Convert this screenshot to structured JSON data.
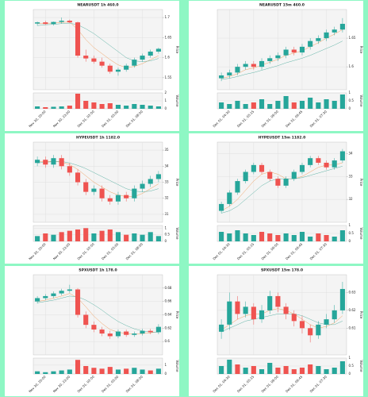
{
  "chart_data": [
    {
      "type": "candlestick",
      "title": "NEARUSDT 1h 460.0",
      "ylabel": "Price",
      "vlabel": "Volume",
      "x": [
        null,
        "Nov 30, 20:00",
        null,
        null,
        "Nov 30, 23:00",
        null,
        null,
        "Dec 01, 02:00",
        null,
        null,
        "Dec 01, 05:00",
        null,
        null,
        "Dec 01, 08:00",
        null,
        null
      ],
      "open": [
        1.685,
        1.688,
        1.684,
        1.689,
        1.692,
        1.688,
        1.605,
        1.598,
        1.59,
        1.58,
        1.565,
        1.57,
        1.58,
        1.595,
        1.605,
        1.615
      ],
      "high": [
        1.69,
        1.692,
        1.69,
        1.7,
        1.695,
        1.69,
        1.62,
        1.605,
        1.6,
        1.585,
        1.575,
        1.585,
        1.6,
        1.61,
        1.62,
        1.625
      ],
      "low": [
        1.68,
        1.682,
        1.68,
        1.685,
        1.686,
        1.6,
        1.59,
        1.585,
        1.575,
        1.56,
        1.555,
        1.565,
        1.575,
        1.59,
        1.6,
        1.61
      ],
      "close": [
        1.688,
        1.684,
        1.689,
        1.692,
        1.688,
        1.605,
        1.598,
        1.59,
        1.58,
        1.565,
        1.57,
        1.58,
        1.595,
        1.605,
        1.615,
        1.622
      ],
      "volume": [
        0.3,
        0.2,
        0.25,
        0.3,
        0.4,
        1.9,
        1.0,
        0.8,
        0.6,
        0.7,
        0.5,
        0.4,
        0.6,
        0.5,
        0.4,
        0.3
      ],
      "ma": [
        {
          "color": "#f0a060",
          "values": [
            1.685,
            1.686,
            1.686,
            1.688,
            1.689,
            1.67,
            1.645,
            1.625,
            1.61,
            1.595,
            1.582,
            1.575,
            1.578,
            1.585,
            1.595,
            1.605
          ]
        },
        {
          "color": "#5fb3a6",
          "values": [
            1.68,
            1.682,
            1.683,
            1.685,
            1.686,
            1.682,
            1.672,
            1.66,
            1.645,
            1.63,
            1.615,
            1.6,
            1.592,
            1.59,
            1.592,
            1.598
          ]
        }
      ],
      "ylim": [
        1.52,
        1.72
      ],
      "yticks": [
        1.55,
        1.6,
        1.65,
        1.7
      ],
      "vlim": [
        0,
        2
      ],
      "vticks": [
        0,
        1,
        2
      ],
      "up_color": "#26a69a",
      "down_color": "#ef5350",
      "grid": true
    },
    {
      "type": "candlestick",
      "title": "NEARUSDT 15m 460.0",
      "ylabel": "Price",
      "vlabel": "Volume",
      "x": [
        null,
        "Dec 01, 04:30",
        null,
        null,
        "Dec 01, 05:15",
        null,
        null,
        "Dec 01, 06:00",
        null,
        null,
        "Dec 01, 06:45",
        null,
        null,
        "Dec 01, 07:30",
        null,
        null
      ],
      "open": [
        1.58,
        1.585,
        1.59,
        1.6,
        1.605,
        1.6,
        1.61,
        1.615,
        1.62,
        1.63,
        1.625,
        1.635,
        1.645,
        1.65,
        1.66,
        1.665
      ],
      "high": [
        1.59,
        1.595,
        1.605,
        1.61,
        1.61,
        1.615,
        1.62,
        1.625,
        1.635,
        1.635,
        1.64,
        1.65,
        1.655,
        1.665,
        1.67,
        1.685
      ],
      "low": [
        1.575,
        1.58,
        1.585,
        1.595,
        1.595,
        1.595,
        1.605,
        1.61,
        1.615,
        1.62,
        1.62,
        1.63,
        1.64,
        1.645,
        1.655,
        1.66
      ],
      "close": [
        1.585,
        1.59,
        1.6,
        1.605,
        1.6,
        1.61,
        1.615,
        1.62,
        1.63,
        1.625,
        1.635,
        1.645,
        1.65,
        1.66,
        1.665,
        1.675
      ],
      "volume": [
        0.4,
        0.3,
        0.5,
        0.3,
        0.4,
        0.6,
        0.3,
        0.5,
        0.8,
        0.4,
        0.5,
        0.7,
        0.4,
        0.6,
        0.5,
        0.9
      ],
      "ma": [
        {
          "color": "#f0a060",
          "values": [
            1.58,
            1.583,
            1.588,
            1.595,
            1.598,
            1.603,
            1.608,
            1.613,
            1.62,
            1.624,
            1.628,
            1.635,
            1.642,
            1.65,
            1.657,
            1.665
          ]
        },
        {
          "color": "#5fb3a6",
          "values": [
            1.578,
            1.58,
            1.583,
            1.587,
            1.59,
            1.594,
            1.598,
            1.602,
            1.607,
            1.611,
            1.615,
            1.62,
            1.626,
            1.632,
            1.638,
            1.645
          ]
        }
      ],
      "ylim": [
        1.56,
        1.7
      ],
      "yticks": [
        1.6,
        1.65
      ],
      "vlim": [
        0,
        1
      ],
      "vticks": [
        0,
        0.5,
        1
      ],
      "up_color": "#26a69a",
      "down_color": "#ef5350",
      "grid": true
    },
    {
      "type": "candlestick",
      "title": "HYPEUSDT 1h 1182.0",
      "ylabel": "Price",
      "vlabel": "Volume",
      "x": [
        null,
        "Nov 30, 20:00",
        null,
        null,
        "Nov 30, 23:00",
        null,
        null,
        "Dec 01, 02:00",
        null,
        null,
        "Dec 01, 05:00",
        null,
        null,
        "Dec 01, 08:00",
        null,
        null
      ],
      "open": [
        34.2,
        34.4,
        34.1,
        34.5,
        34.0,
        33.6,
        33.0,
        32.4,
        32.6,
        32.0,
        31.8,
        32.2,
        32.0,
        32.6,
        32.9,
        33.2
      ],
      "high": [
        34.6,
        34.6,
        34.7,
        34.7,
        34.2,
        33.8,
        33.2,
        32.8,
        32.8,
        32.2,
        32.4,
        32.4,
        32.8,
        33.1,
        33.4,
        33.7
      ],
      "low": [
        34.0,
        33.9,
        33.9,
        33.8,
        33.4,
        32.8,
        32.2,
        32.2,
        31.8,
        31.6,
        31.6,
        31.8,
        31.8,
        32.4,
        32.7,
        33.0
      ],
      "close": [
        34.4,
        34.1,
        34.5,
        34.0,
        33.6,
        33.0,
        32.4,
        32.6,
        32.0,
        31.8,
        32.2,
        32.0,
        32.6,
        32.9,
        33.2,
        33.5
      ],
      "volume": [
        0.4,
        0.6,
        0.5,
        0.7,
        0.8,
        0.9,
        1.0,
        0.6,
        0.8,
        0.9,
        0.7,
        0.5,
        0.6,
        0.5,
        0.7,
        0.4
      ],
      "ma": [
        {
          "color": "#f0a060",
          "values": [
            34.3,
            34.3,
            34.3,
            34.25,
            34.1,
            33.8,
            33.4,
            33.0,
            32.7,
            32.4,
            32.2,
            32.1,
            32.1,
            32.3,
            32.6,
            32.9
          ]
        },
        {
          "color": "#5fb3a6",
          "values": [
            34.2,
            34.25,
            34.28,
            34.3,
            34.2,
            34.05,
            33.85,
            33.6,
            33.35,
            33.1,
            32.85,
            32.6,
            32.45,
            32.4,
            32.45,
            32.6
          ]
        }
      ],
      "ylim": [
        30.5,
        35.5
      ],
      "yticks": [
        31,
        32,
        33,
        34,
        35
      ],
      "vlim": [
        0,
        1.2
      ],
      "vticks": [
        0,
        0.5,
        1
      ],
      "up_color": "#26a69a",
      "down_color": "#ef5350",
      "grid": true
    },
    {
      "type": "candlestick",
      "title": "HYPEUSDT 15m 1182.0",
      "ylabel": "Price",
      "vlabel": "Volume",
      "x": [
        null,
        "Dec 01, 04:30",
        null,
        null,
        "Dec 01, 05:15",
        null,
        null,
        "Dec 01, 06:00",
        null,
        null,
        "Dec 01, 06:45",
        null,
        null,
        "Dec 01, 07:30",
        null,
        null
      ],
      "open": [
        31.5,
        31.8,
        32.3,
        32.8,
        33.2,
        33.5,
        33.2,
        32.9,
        32.6,
        32.9,
        33.2,
        33.5,
        33.8,
        33.6,
        33.4,
        33.7
      ],
      "high": [
        31.9,
        32.4,
        32.9,
        33.3,
        33.6,
        33.6,
        33.3,
        33.0,
        33.0,
        33.3,
        33.6,
        33.9,
        33.9,
        33.7,
        33.8,
        34.2
      ],
      "low": [
        31.4,
        31.7,
        32.2,
        32.7,
        33.1,
        33.1,
        32.8,
        32.5,
        32.5,
        32.8,
        33.1,
        33.4,
        33.5,
        33.3,
        33.3,
        33.6
      ],
      "close": [
        31.8,
        32.3,
        32.8,
        33.2,
        33.5,
        33.2,
        32.9,
        32.6,
        32.9,
        33.2,
        33.5,
        33.8,
        33.6,
        33.4,
        33.7,
        34.1
      ],
      "volume": [
        0.6,
        0.5,
        0.7,
        0.5,
        0.4,
        0.6,
        0.5,
        0.4,
        0.5,
        0.4,
        0.6,
        0.3,
        0.5,
        0.4,
        0.3,
        0.7
      ],
      "ma": [
        {
          "color": "#f0a060",
          "values": [
            31.5,
            31.7,
            32.0,
            32.4,
            32.8,
            33.1,
            33.2,
            33.1,
            32.9,
            32.9,
            33.0,
            33.2,
            33.4,
            33.5,
            33.5,
            33.6
          ]
        },
        {
          "color": "#5fb3a6",
          "values": [
            31.4,
            31.5,
            31.7,
            32.0,
            32.3,
            32.6,
            32.8,
            32.9,
            32.9,
            32.9,
            32.95,
            33.05,
            33.15,
            33.25,
            33.35,
            33.45
          ]
        }
      ],
      "ylim": [
        31,
        34.5
      ],
      "yticks": [
        32,
        33,
        34
      ],
      "vlim": [
        0,
        1
      ],
      "vticks": [
        0,
        0.5,
        1
      ],
      "up_color": "#26a69a",
      "down_color": "#ef5350",
      "grid": true
    },
    {
      "type": "candlestick",
      "title": "SPXUSDT 1h 178.0",
      "ylabel": "Price",
      "vlabel": "Volume",
      "x": [
        null,
        "Nov 30, 20:00",
        null,
        null,
        "Nov 30, 23:00",
        null,
        null,
        "Dec 01, 02:00",
        null,
        null,
        "Dec 01, 05:00",
        null,
        null,
        "Dec 01, 08:00",
        null,
        null
      ],
      "open": [
        0.66,
        0.665,
        0.668,
        0.672,
        0.676,
        0.678,
        0.64,
        0.625,
        0.618,
        0.612,
        0.608,
        0.615,
        0.61,
        0.612,
        0.616,
        0.614
      ],
      "high": [
        0.668,
        0.671,
        0.675,
        0.679,
        0.685,
        0.68,
        0.645,
        0.63,
        0.622,
        0.616,
        0.618,
        0.618,
        0.615,
        0.619,
        0.619,
        0.626
      ],
      "low": [
        0.657,
        0.662,
        0.665,
        0.669,
        0.673,
        0.636,
        0.62,
        0.614,
        0.608,
        0.604,
        0.605,
        0.607,
        0.607,
        0.609,
        0.611,
        0.611
      ],
      "close": [
        0.665,
        0.668,
        0.672,
        0.676,
        0.678,
        0.64,
        0.625,
        0.618,
        0.612,
        0.608,
        0.615,
        0.61,
        0.612,
        0.616,
        0.614,
        0.622
      ],
      "volume": [
        0.3,
        0.2,
        0.3,
        0.4,
        0.5,
        1.6,
        0.9,
        0.7,
        0.6,
        0.8,
        0.5,
        0.6,
        0.7,
        0.5,
        0.4,
        0.6
      ],
      "ma": [
        {
          "color": "#f0a060",
          "values": [
            0.66,
            0.662,
            0.665,
            0.668,
            0.672,
            0.665,
            0.652,
            0.638,
            0.627,
            0.618,
            0.614,
            0.612,
            0.611,
            0.612,
            0.613,
            0.615
          ]
        },
        {
          "color": "#5fb3a6",
          "values": [
            0.658,
            0.66,
            0.662,
            0.665,
            0.668,
            0.667,
            0.662,
            0.655,
            0.647,
            0.638,
            0.63,
            0.624,
            0.619,
            0.616,
            0.614,
            0.614
          ]
        }
      ],
      "ylim": [
        0.58,
        0.7
      ],
      "yticks": [
        0.6,
        0.62,
        0.64,
        0.66,
        0.68
      ],
      "vlim": [
        0,
        1.8
      ],
      "vticks": [
        0,
        1
      ],
      "up_color": "#26a69a",
      "down_color": "#ef5350",
      "grid": true
    },
    {
      "type": "candlestick",
      "title": "SPXUSDT 15m 178.0",
      "ylabel": "Price",
      "vlabel": "Volume",
      "x": [
        null,
        "Dec 01, 04:30",
        null,
        null,
        "Dec 01, 05:15",
        null,
        null,
        "Dec 01, 06:00",
        null,
        null,
        "Dec 01, 06:45",
        null,
        null,
        "Dec 01, 07:30",
        null,
        null
      ],
      "open": [
        0.608,
        0.612,
        0.625,
        0.618,
        0.622,
        0.615,
        0.62,
        0.628,
        0.622,
        0.618,
        0.614,
        0.61,
        0.606,
        0.612,
        0.615,
        0.62
      ],
      "high": [
        0.615,
        0.63,
        0.628,
        0.625,
        0.624,
        0.623,
        0.631,
        0.63,
        0.624,
        0.62,
        0.617,
        0.612,
        0.614,
        0.618,
        0.623,
        0.636
      ],
      "low": [
        0.604,
        0.609,
        0.615,
        0.616,
        0.612,
        0.613,
        0.618,
        0.619,
        0.615,
        0.611,
        0.607,
        0.602,
        0.604,
        0.61,
        0.613,
        0.618
      ],
      "close": [
        0.612,
        0.625,
        0.618,
        0.622,
        0.615,
        0.62,
        0.628,
        0.622,
        0.618,
        0.614,
        0.61,
        0.606,
        0.612,
        0.615,
        0.62,
        0.632
      ],
      "volume": [
        0.5,
        0.9,
        0.6,
        0.4,
        0.5,
        0.3,
        0.7,
        0.4,
        0.5,
        0.3,
        0.4,
        0.6,
        0.5,
        0.3,
        0.4,
        0.8
      ],
      "ma": [
        {
          "color": "#f0a060",
          "values": [
            0.609,
            0.612,
            0.615,
            0.617,
            0.618,
            0.618,
            0.62,
            0.621,
            0.62,
            0.618,
            0.615,
            0.612,
            0.61,
            0.611,
            0.613,
            0.617
          ]
        },
        {
          "color": "#5fb3a6",
          "values": [
            0.608,
            0.61,
            0.612,
            0.614,
            0.615,
            0.616,
            0.617,
            0.618,
            0.618,
            0.618,
            0.617,
            0.615,
            0.613,
            0.612,
            0.612,
            0.614
          ]
        }
      ],
      "ylim": [
        0.595,
        0.64
      ],
      "yticks": [
        0.61,
        0.62,
        0.63
      ],
      "vlim": [
        0,
        1
      ],
      "vticks": [
        0,
        0.5,
        1
      ],
      "up_color": "#26a69a",
      "down_color": "#ef5350",
      "grid": true
    }
  ]
}
